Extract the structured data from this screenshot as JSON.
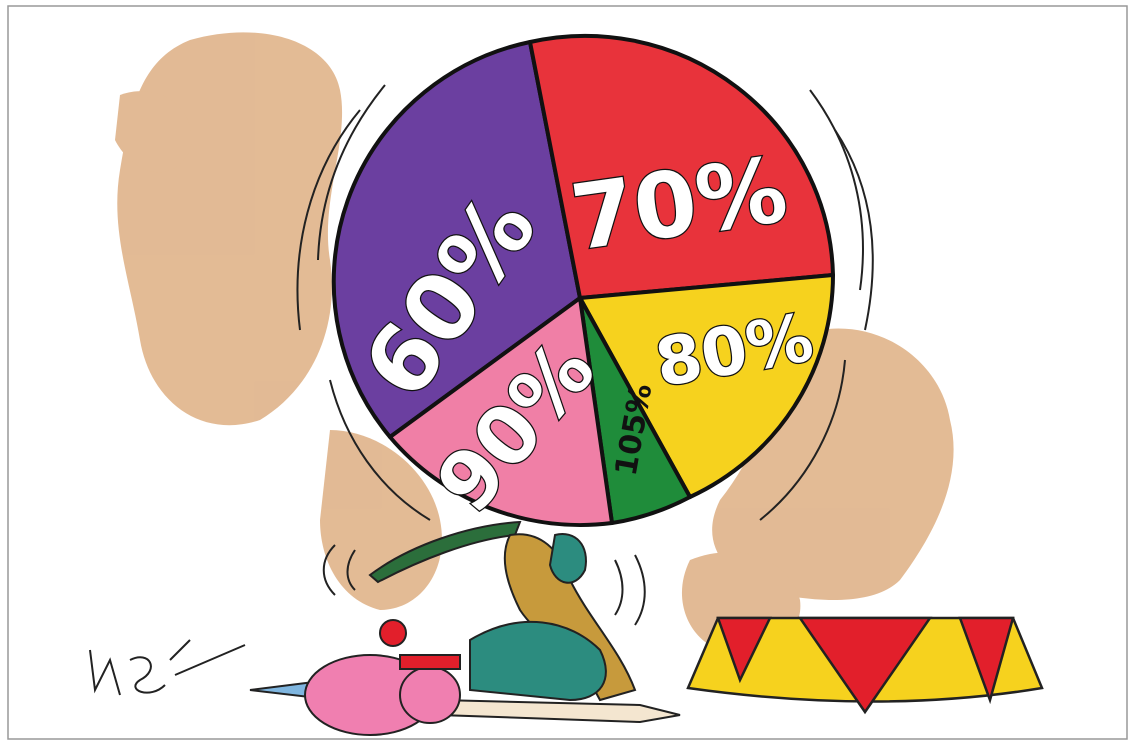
{
  "pie": {
    "slices": [
      {
        "label": "60%"
      },
      {
        "label": "70%"
      },
      {
        "label": "80%"
      },
      {
        "label": "105%"
      },
      {
        "label": "90%"
      }
    ]
  }
}
